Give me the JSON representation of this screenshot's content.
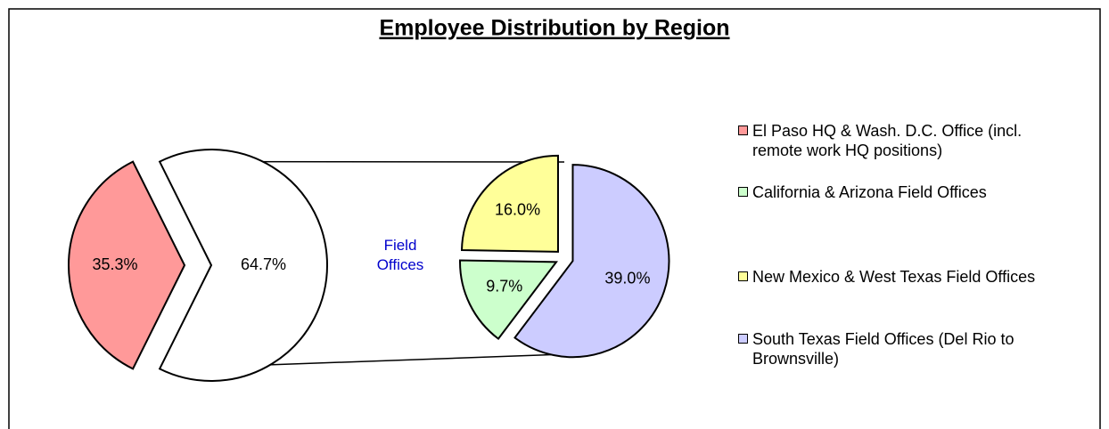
{
  "chart_data": {
    "type": "pie-of-pie",
    "title": "Employee Distribution by Region",
    "series": [
      {
        "name": "El Paso HQ & Wash. D.C. Office (incl. remote work HQ positions)",
        "color": "#ff9999"
      },
      {
        "name": "California & Arizona Field Offices",
        "color": "#ccffcc"
      },
      {
        "name": "New Mexico & West Texas Field Offices",
        "color": "#ffff99"
      },
      {
        "name": "South Texas Field Offices (Del Rio to Brownsville)",
        "color": "#ccccff"
      }
    ],
    "values": [
      35.3,
      9.7,
      16.0,
      39.0
    ],
    "value_labels": [
      "35.3%",
      "9.7%",
      "16.0%",
      "39.0%"
    ],
    "other_label": "Field Offices",
    "other_value": 64.7,
    "other_value_label": "64.7%"
  }
}
